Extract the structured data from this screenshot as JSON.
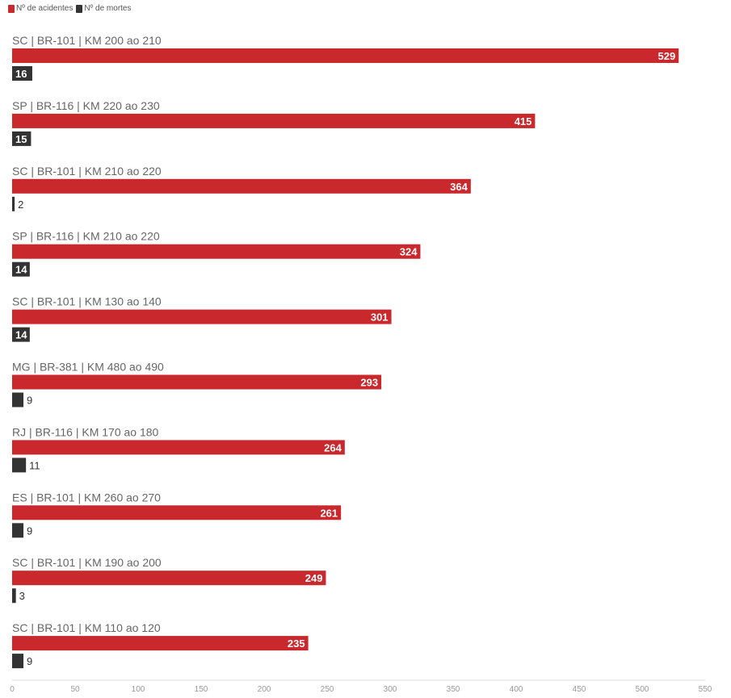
{
  "chart_data": {
    "type": "bar",
    "orientation": "horizontal",
    "categories": [
      "SC | BR-101 | KM 200 ao 210",
      "SP | BR-116 | KM 220 ao 230",
      "SC | BR-101 | KM 210 ao 220",
      "SP | BR-116 | KM 210 ao 220",
      "SC | BR-101 | KM 130 ao 140",
      "MG | BR-381 | KM 480 ao 490",
      "RJ | BR-116 | KM 170 ao 180",
      "ES | BR-101 | KM 260 ao 270",
      "SC | BR-101 | KM 190 ao 200",
      "SC | BR-101 | KM 110 ao 120"
    ],
    "series": [
      {
        "name": "Nº de acidentes",
        "color": "#c9282d",
        "values": [
          529,
          415,
          364,
          324,
          301,
          293,
          264,
          261,
          249,
          235
        ]
      },
      {
        "name": "Nº de mortes",
        "color": "#333333",
        "values": [
          16,
          15,
          2,
          14,
          14,
          9,
          11,
          9,
          3,
          9
        ]
      }
    ],
    "xlim": [
      0,
      550
    ],
    "xticks": [
      0,
      50,
      100,
      150,
      200,
      250,
      300,
      350,
      400,
      450,
      500,
      550
    ],
    "legend_position": "top-left",
    "grid": false
  }
}
